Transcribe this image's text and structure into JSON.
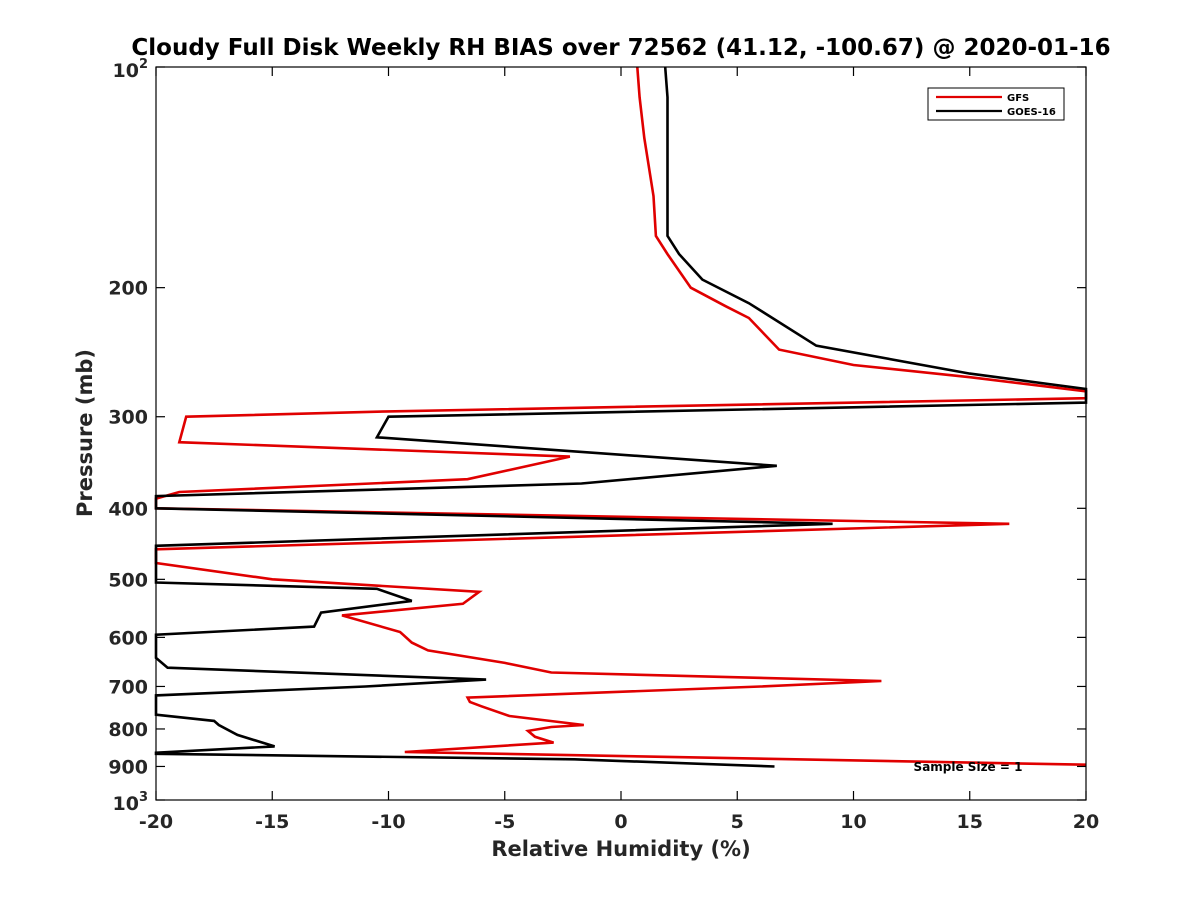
{
  "chart_data": {
    "type": "line",
    "title": "Cloudy Full Disk Weekly RH BIAS over 72562 (41.12, -100.67) @ 2020-01-16",
    "xlabel": "Relative Humidity (%)",
    "ylabel": "Pressure (mb)",
    "xlim": [
      -20,
      20
    ],
    "ylim": [
      100,
      1000
    ],
    "y_scale": "log",
    "y_reversed": true,
    "x_ticks": [
      "-20",
      "-15",
      "-10",
      "-5",
      "0",
      "5",
      "10",
      "15",
      "20"
    ],
    "y_ticks": [
      {
        "value": 100,
        "base": "10",
        "exp": "2"
      },
      {
        "value": 200,
        "base": "200",
        "exp": ""
      },
      {
        "value": 300,
        "base": "300",
        "exp": ""
      },
      {
        "value": 400,
        "base": "400",
        "exp": ""
      },
      {
        "value": 500,
        "base": "500",
        "exp": ""
      },
      {
        "value": 600,
        "base": "600",
        "exp": ""
      },
      {
        "value": 700,
        "base": "700",
        "exp": ""
      },
      {
        "value": 800,
        "base": "800",
        "exp": ""
      },
      {
        "value": 900,
        "base": "900",
        "exp": ""
      },
      {
        "value": 1000,
        "base": "10",
        "exp": "3"
      }
    ],
    "legend_position": "top-right",
    "annotation": "Sample Size = 1",
    "series": [
      {
        "name": "GFS",
        "color": "#e00000",
        "points": [
          [
            0.7,
            100
          ],
          [
            0.8,
            110
          ],
          [
            1.0,
            125
          ],
          [
            1.4,
            150
          ],
          [
            1.5,
            170
          ],
          [
            2.0,
            180
          ],
          [
            3.0,
            200
          ],
          [
            4.5,
            212
          ],
          [
            5.5,
            220
          ],
          [
            6.8,
            243
          ],
          [
            10.0,
            255
          ],
          [
            15.0,
            265
          ],
          [
            20,
            277
          ],
          [
            20,
            283
          ],
          [
            -10.0,
            295
          ],
          [
            -18.7,
            300
          ],
          [
            -19.0,
            325
          ],
          [
            -2.2,
            340
          ],
          [
            -6.6,
            365
          ],
          [
            -19.0,
            380
          ],
          [
            -20,
            388
          ],
          [
            -20,
            400
          ],
          [
            16.7,
            420
          ],
          [
            -20,
            455
          ],
          [
            -20,
            475
          ],
          [
            -15.0,
            500
          ],
          [
            -6.1,
            520
          ],
          [
            -6.8,
            540
          ],
          [
            -12.0,
            560
          ],
          [
            -9.5,
            590
          ],
          [
            -9.0,
            610
          ],
          [
            -8.3,
            625
          ],
          [
            -5.0,
            650
          ],
          [
            -3.0,
            670
          ],
          [
            11.2,
            688
          ],
          [
            6.0,
            700
          ],
          [
            -6.6,
            725
          ],
          [
            -6.5,
            735
          ],
          [
            -6.0,
            745
          ],
          [
            -4.8,
            768
          ],
          [
            -1.6,
            790
          ],
          [
            -3.0,
            795
          ],
          [
            -4.0,
            805
          ],
          [
            -3.7,
            820
          ],
          [
            -2.9,
            835
          ],
          [
            -9.3,
            860
          ],
          [
            20,
            895
          ]
        ]
      },
      {
        "name": "GOES-16",
        "color": "#000000",
        "points": [
          [
            1.9,
            100
          ],
          [
            2.0,
            110
          ],
          [
            2.0,
            125
          ],
          [
            2.0,
            150
          ],
          [
            2.0,
            170
          ],
          [
            2.5,
            180
          ],
          [
            3.5,
            195
          ],
          [
            5.5,
            210
          ],
          [
            8.4,
            240
          ],
          [
            15.0,
            262
          ],
          [
            20,
            275
          ],
          [
            20,
            287
          ],
          [
            -10.0,
            300
          ],
          [
            -10.5,
            320
          ],
          [
            6.7,
            350
          ],
          [
            -1.7,
            370
          ],
          [
            -20,
            385
          ],
          [
            -20,
            400
          ],
          [
            9.1,
            420
          ],
          [
            -20,
            450
          ],
          [
            -20,
            505
          ],
          [
            -10.5,
            515
          ],
          [
            -9.0,
            535
          ],
          [
            -12.9,
            555
          ],
          [
            -13.2,
            580
          ],
          [
            -20,
            595
          ],
          [
            -20,
            640
          ],
          [
            -19.5,
            660
          ],
          [
            -5.8,
            685
          ],
          [
            -11.0,
            700
          ],
          [
            -20,
            720
          ],
          [
            -20,
            765
          ],
          [
            -17.5,
            780
          ],
          [
            -17.3,
            790
          ],
          [
            -16.5,
            815
          ],
          [
            -14.9,
            845
          ],
          [
            -20,
            862
          ],
          [
            -20,
            865
          ],
          [
            -2.0,
            880
          ],
          [
            6.6,
            900
          ]
        ]
      }
    ]
  }
}
